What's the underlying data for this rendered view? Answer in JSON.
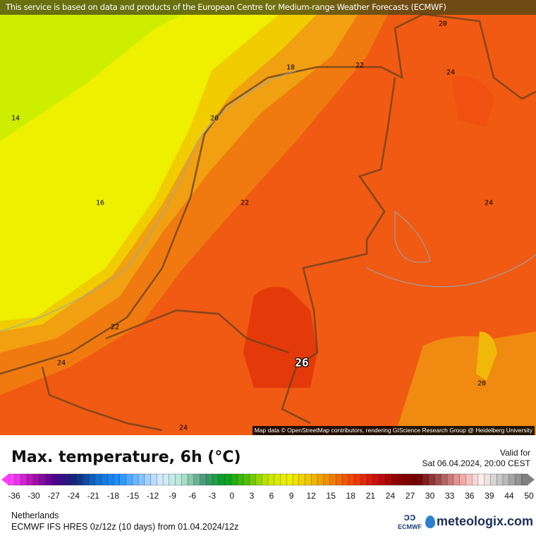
{
  "map": {
    "banner": "This service is based on data and products of the European Centre for Medium-range Weather Forecasts (ECMWF)",
    "attribution": "Map data © OpenStreetMap contributors, rendering GIScience Research Group @ Heidelberg University",
    "contour_labels": [
      "14",
      "16",
      "18",
      "20",
      "20",
      "22",
      "22",
      "22",
      "24",
      "24",
      "24",
      "24",
      "26",
      "20"
    ]
  },
  "footer": {
    "title": "Max. temperature, 6h (°C)",
    "valid_label": "Valid for",
    "valid_time": "Sat 06.04.2024, 20:00 CEST",
    "region": "Netherlands",
    "model": "ECMWF IFS HRES 0z/12z (10 days) from  01.04.2024/12z",
    "ecmwf_logo": "ECMWF",
    "brand": "meteologix.com"
  },
  "colorbar": {
    "ticks": [
      "-36",
      "-30",
      "-27",
      "-24",
      "-21",
      "-18",
      "-15",
      "-12",
      "-9",
      "-6",
      "-3",
      "0",
      "3",
      "6",
      "9",
      "12",
      "15",
      "18",
      "21",
      "24",
      "27",
      "30",
      "33",
      "36",
      "39",
      "44",
      "50"
    ],
    "colors": [
      "#ff40ff",
      "#b010b0",
      "#500090",
      "#102878",
      "#1070d0",
      "#1e90ff",
      "#80c0ff",
      "#d8ecff",
      "#b0e8d0",
      "#489878",
      "#00a020",
      "#50c000",
      "#c8e800",
      "#f0f000",
      "#f0c000",
      "#f08000",
      "#f04000",
      "#d01010",
      "#900000",
      "#700000",
      "#a05050",
      "#f0a0a0",
      "#fff0f0",
      "#c0c0c0",
      "#808080"
    ]
  }
}
